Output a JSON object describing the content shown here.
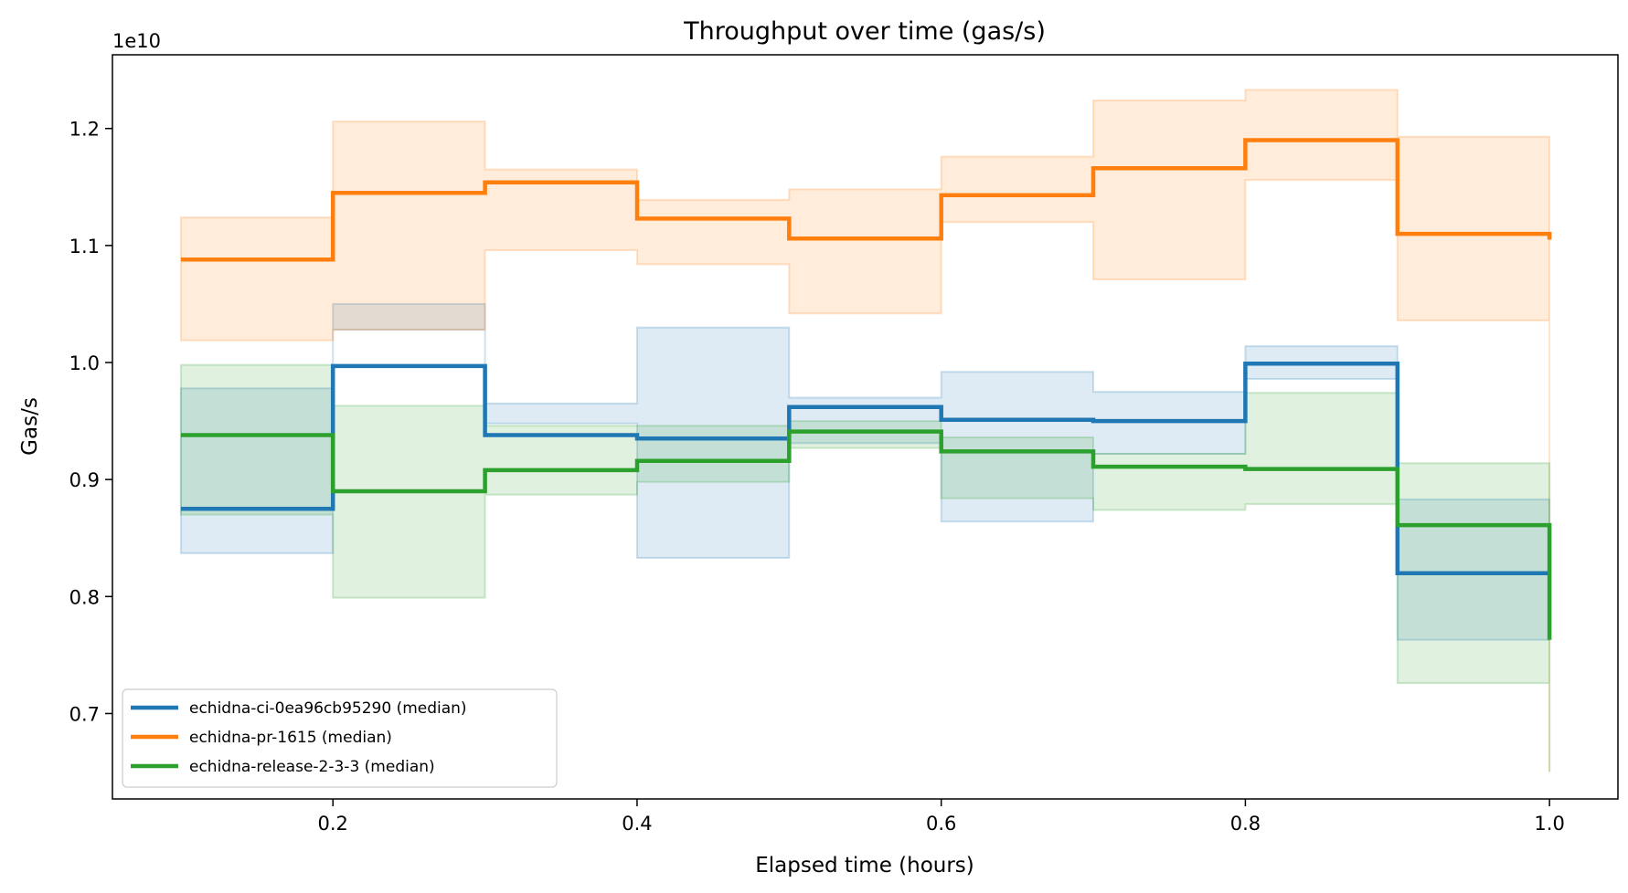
{
  "chart_data": {
    "type": "line",
    "step": "post",
    "title": "Throughput over time (gas/s)",
    "xlabel": "Elapsed time (hours)",
    "ylabel": "Gas/s",
    "y_offset_label": "1e10",
    "xlim": [
      0.055,
      1.045
    ],
    "ylim": [
      6.27,
      12.63
    ],
    "x_ticks": [
      0.2,
      0.4,
      0.6,
      0.8,
      1.0
    ],
    "x_tick_labels": [
      "0.2",
      "0.4",
      "0.6",
      "0.8",
      "1.0"
    ],
    "y_ticks": [
      7.0,
      8.0,
      9.0,
      10.0,
      11.0,
      12.0
    ],
    "y_tick_labels": [
      "0.7",
      "0.8",
      "0.9",
      "1.0",
      "1.1",
      "1.2"
    ],
    "grid": false,
    "legend_position": "lower-left",
    "x": [
      0.1,
      0.2,
      0.3,
      0.4,
      0.5,
      0.6,
      0.7,
      0.8,
      0.9,
      1.0
    ],
    "series": [
      {
        "name": "echidna-ci-0ea96cb95290 (median)",
        "color": "#1f77b4",
        "values": [
          8.75,
          9.97,
          9.38,
          9.35,
          9.62,
          9.51,
          9.5,
          9.99,
          8.2,
          8.2
        ],
        "lower": [
          8.37,
          10.28,
          9.48,
          8.33,
          9.31,
          8.64,
          9.22,
          9.86,
          7.63,
          7.63
        ],
        "upper": [
          9.78,
          10.5,
          9.65,
          10.3,
          9.7,
          9.92,
          9.75,
          10.14,
          8.83,
          8.83
        ]
      },
      {
        "name": "echidna-pr-1615 (median)",
        "color": "#ff7f0e",
        "values": [
          10.88,
          11.45,
          11.54,
          11.23,
          11.06,
          11.43,
          11.66,
          11.9,
          11.1,
          11.05
        ],
        "lower": [
          10.19,
          10.28,
          10.96,
          10.84,
          10.42,
          11.2,
          10.71,
          11.56,
          10.36,
          6.5
        ],
        "upper": [
          11.24,
          12.06,
          11.65,
          11.39,
          11.48,
          11.76,
          12.24,
          12.33,
          11.93,
          11.93
        ]
      },
      {
        "name": "echidna-release-2-3-3 (median)",
        "color": "#2ca02c",
        "values": [
          9.38,
          8.9,
          9.08,
          9.16,
          9.41,
          9.24,
          9.11,
          9.09,
          8.61,
          7.63
        ],
        "lower": [
          8.7,
          7.99,
          8.87,
          8.98,
          9.27,
          8.84,
          8.74,
          8.79,
          7.26,
          6.5
        ],
        "upper": [
          9.98,
          9.63,
          9.46,
          9.46,
          9.5,
          9.36,
          9.22,
          9.74,
          9.14,
          9.14
        ]
      }
    ]
  }
}
